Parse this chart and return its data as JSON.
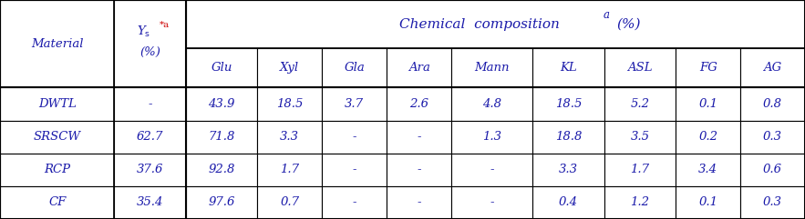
{
  "title": "Chemical composition",
  "title_superscript": "a",
  "title_suffix": "(%)",
  "col_headers": [
    "Glu",
    "Xyl",
    "Gla",
    "Ara",
    "Mann",
    "KL",
    "ASL",
    "FG",
    "AG"
  ],
  "row_headers": [
    "Material",
    "DWTL",
    "SRSCW",
    "RCP",
    "CF"
  ],
  "ys_col": [
    "Y_s*a\n(%)",
    "-",
    "62.7",
    "37.6",
    "35.4"
  ],
  "data": [
    [
      "43.9",
      "18.5",
      "3.7",
      "2.6",
      "4.8",
      "18.5",
      "5.2",
      "0.1",
      "0.8"
    ],
    [
      "71.8",
      "3.3",
      "-",
      "-",
      "1.3",
      "18.8",
      "3.5",
      "0.2",
      "0.3"
    ],
    [
      "92.8",
      "1.7",
      "-",
      "-",
      "-",
      "3.3",
      "1.7",
      "3.4",
      "0.6"
    ],
    [
      "97.6",
      "0.7",
      "-",
      "-",
      "-",
      "0.4",
      "1.2",
      "0.1",
      "0.3"
    ]
  ],
  "text_color": "#1a1aaa",
  "border_color": "#000000",
  "bg_color": "#ffffff",
  "header_bg": "#ffffff",
  "font_size": 9.5,
  "title_font_size": 11,
  "ys_superscript_color": "#cc0000",
  "fig_width": 8.83,
  "fig_height": 2.41
}
